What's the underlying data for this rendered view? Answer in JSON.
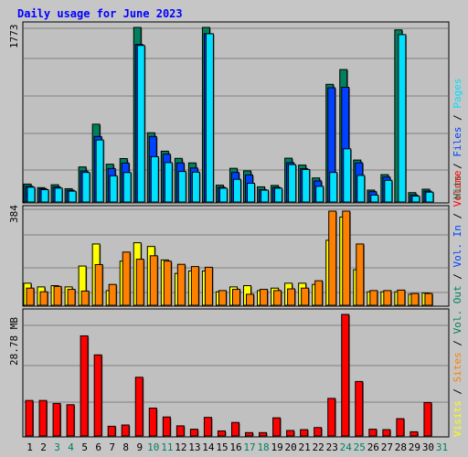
{
  "chart_data": {
    "type": "bar",
    "title": "Daily usage for June 2023",
    "days": [
      "1",
      "2",
      "3",
      "4",
      "5",
      "6",
      "7",
      "8",
      "9",
      "10",
      "11",
      "12",
      "13",
      "14",
      "15",
      "16",
      "17",
      "18",
      "19",
      "20",
      "21",
      "22",
      "23",
      "24",
      "25",
      "26",
      "27",
      "28",
      "29",
      "30",
      "31"
    ],
    "weekend_days": [
      3,
      4,
      10,
      11,
      17,
      18,
      24,
      25,
      31
    ],
    "colors": {
      "weekday_label": "#000000",
      "weekend_label": "#00805c",
      "hits": "#00805c",
      "files": "#0040ff",
      "pages": "#00e0ff",
      "visits": "#ffff00",
      "sites": "#ff8000",
      "kbytes": "#ff0000",
      "background": "#c0c0c0",
      "frame": "#c6c6c6"
    },
    "top_panel": {
      "max_label": "1773",
      "max": 1773,
      "series": [
        {
          "name": "Hits",
          "values": [
            182,
            146,
            175,
            135,
            356,
            790,
            384,
            441,
            1773,
            703,
            516,
            443,
            397,
            1773,
            171,
            342,
            316,
            154,
            168,
            445,
            375,
            244,
            1195,
            1345,
            426,
            121,
            278,
            1748,
            95,
            130,
            0
          ]
        },
        {
          "name": "Files",
          "values": [
            160,
            135,
            153,
            120,
            315,
            665,
            340,
            396,
            1600,
            665,
            486,
            397,
            345,
            1709,
            149,
            300,
            275,
            125,
            148,
            400,
            338,
            214,
            1160,
            1165,
            398,
            105,
            253,
            0,
            72,
            111,
            0
          ]
        },
        {
          "name": "Pages",
          "values": [
            150,
            125,
            141,
            110,
            300,
            630,
            266,
            299,
            1590,
            460,
            400,
            310,
            303,
            1709,
            140,
            230,
            190,
            120,
            140,
            380,
            330,
            160,
            300,
            540,
            270,
            70,
            220,
            1700,
            60,
            100,
            0
          ]
        }
      ],
      "right_labels": [
        "Hits",
        "Files",
        "Pages"
      ]
    },
    "mid_panel": {
      "max_label": "384",
      "max": 384,
      "series": [
        {
          "name": "Visits",
          "values": [
            90,
            75,
            80,
            75,
            160,
            250,
            60,
            180,
            255,
            240,
            185,
            130,
            140,
            140,
            55,
            75,
            80,
            60,
            70,
            90,
            90,
            85,
            265,
            360,
            145,
            55,
            55,
            55,
            45,
            50,
            0
          ]
        },
        {
          "name": "Sites",
          "values": [
            70,
            55,
            77,
            65,
            58,
            166,
            85,
            217,
            188,
            202,
            180,
            167,
            158,
            155,
            60,
            65,
            45,
            65,
            60,
            67,
            70,
            100,
            384,
            384,
            250,
            60,
            60,
            62,
            48,
            48,
            0
          ]
        }
      ],
      "right_labels": [
        "Visits",
        "Sites",
        "Vol. Out",
        "Vol. In",
        "Volume"
      ]
    },
    "bottom_panel": {
      "max_label": "28.78 MB",
      "max": 28.78,
      "series": [
        {
          "name": "Volume",
          "values": [
            8.4,
            8.4,
            7.7,
            7.4,
            23.7,
            19.2,
            2.3,
            2.6,
            13.9,
            6.6,
            4.5,
            2.4,
            1.6,
            4.4,
            1.2,
            3.2,
            0.8,
            0.8,
            4.3,
            1.3,
            1.5,
            2.0,
            8.9,
            28.78,
            12.9,
            1.6,
            1.5,
            4.1,
            1.0,
            7.9,
            0
          ]
        }
      ]
    }
  }
}
